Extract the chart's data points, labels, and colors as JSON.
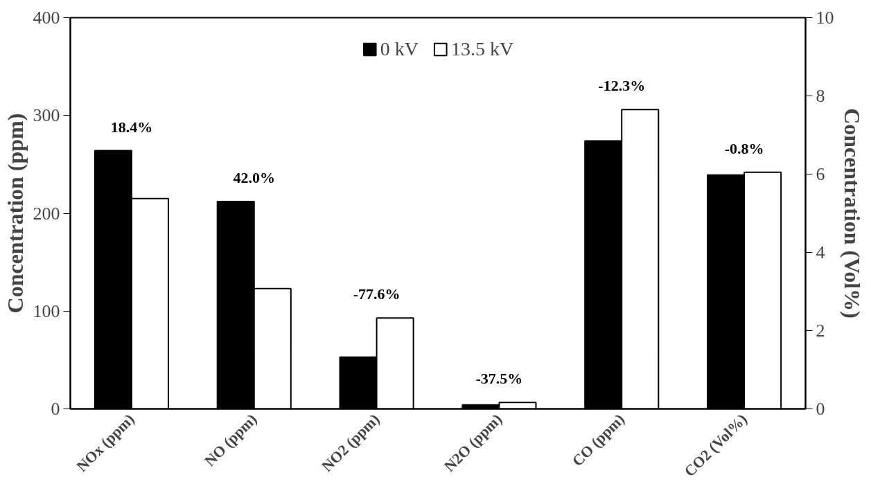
{
  "chart_data": {
    "type": "bar",
    "categories": [
      "NOx (ppm)",
      "NO (ppm)",
      "NO2 (ppm)",
      "N2O (ppm)",
      "CO (ppm)",
      "CO2 (Vol%)"
    ],
    "series": [
      {
        "name": "0 kV",
        "color": "#000000",
        "values": [
          264,
          212,
          53,
          4,
          274,
          null
        ]
      },
      {
        "name": "13.5 kV",
        "color": "#ffffff",
        "values": [
          215,
          123,
          93,
          6.5,
          306,
          null
        ]
      },
      {
        "color": "#000000",
        "axis": "y2",
        "values": [
          null,
          null,
          null,
          null,
          null,
          5.98
        ]
      },
      {
        "color": "#ffffff",
        "axis": "y2",
        "values": [
          null,
          null,
          null,
          null,
          null,
          6.05
        ]
      }
    ],
    "ylabel": "Concentration (ppm)",
    "y2label": "Concentration (Vol%)",
    "ylim": [
      0,
      400
    ],
    "yticks": [
      0,
      100,
      200,
      300,
      400
    ],
    "y2lim": [
      0,
      10
    ],
    "y2ticks": [
      0,
      2,
      4,
      6,
      8,
      10
    ],
    "annotations": [
      "18.4%",
      "42.0%",
      "-77.6%",
      "-37.5%",
      "-12.3%",
      "-0.8%"
    ],
    "legend": "top",
    "grid": false
  }
}
